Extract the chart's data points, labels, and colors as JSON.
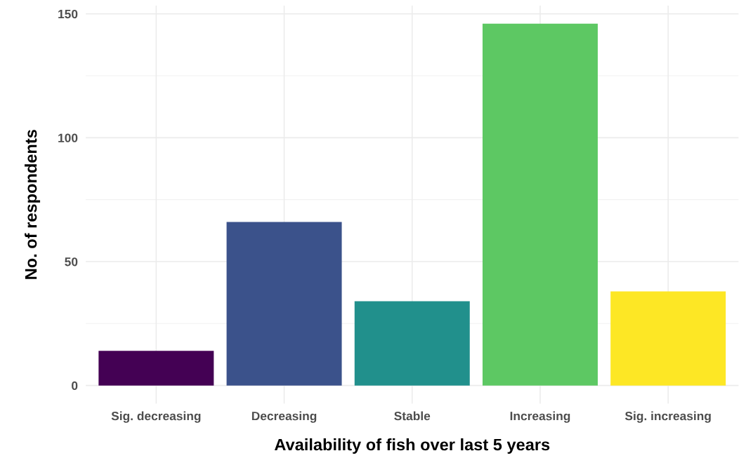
{
  "chart_data": {
    "type": "bar",
    "xlabel": "Availability of fish over last 5 years",
    "ylabel": "No. of respondents",
    "categories": [
      "Sig. decreasing",
      "Decreasing",
      "Stable",
      "Increasing",
      "Sig. increasing"
    ],
    "values": [
      14,
      66,
      34,
      146,
      38
    ],
    "colors": [
      "#440154",
      "#3b528b",
      "#21908c",
      "#5dc863",
      "#fde725"
    ],
    "ylim": [
      -7.3,
      153.3
    ],
    "yticks": [
      0,
      50,
      100,
      150
    ],
    "grid": true
  }
}
